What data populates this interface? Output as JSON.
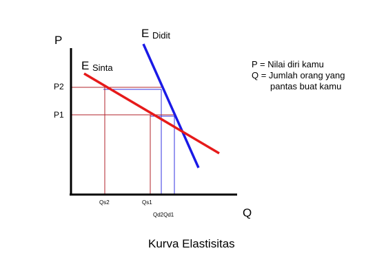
{
  "axes": {
    "y_label": "P",
    "x_label": "Q"
  },
  "curves": {
    "didit": {
      "letter": "E",
      "name": "Didit",
      "color": "#1a1ae6"
    },
    "sinta": {
      "letter": "E",
      "name": "Sinta",
      "color": "#e61a1a"
    }
  },
  "price_ticks": {
    "p2": "P2",
    "p1": "P1"
  },
  "quantity_ticks": {
    "qs2": "Qs2",
    "qs1": "Qs1",
    "qd2qd1": "Qd2Qd1"
  },
  "legend": {
    "line1": "P = Nilai diri kamu",
    "line2": "Q = Jumlah orang yang",
    "line3": "pantas buat kamu"
  },
  "caption": "Kurva Elastisitas",
  "colors": {
    "axis": "#000000",
    "guide_red": "#b0202a",
    "guide_blue": "#3030e0"
  }
}
